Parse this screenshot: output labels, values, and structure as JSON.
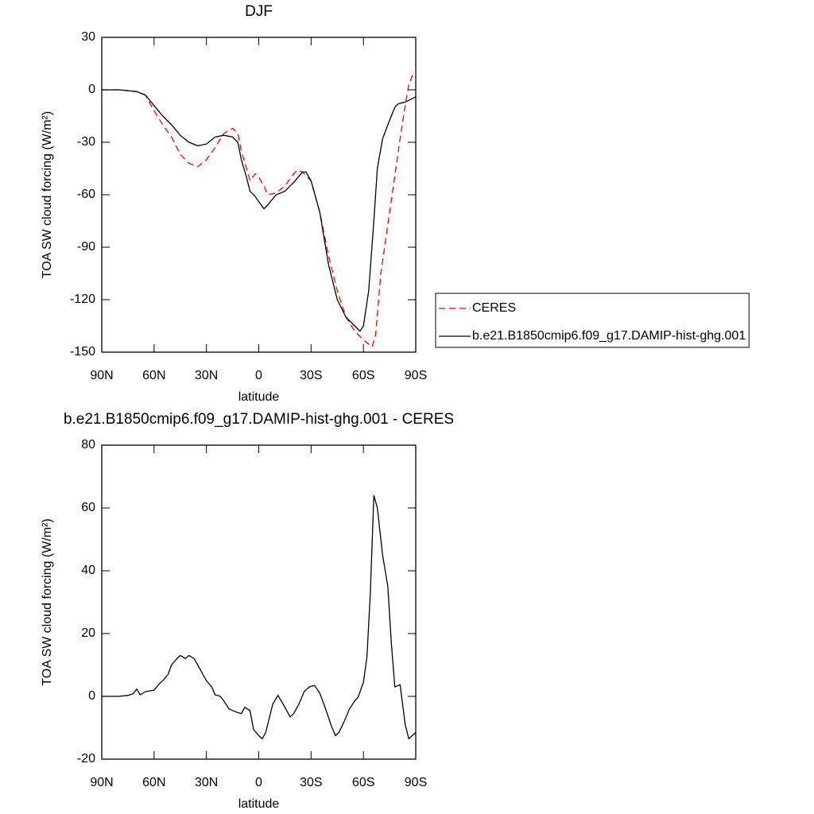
{
  "chart_data": [
    {
      "type": "line",
      "title": "DJF",
      "xlabel": "latitude",
      "ylabel": "TOA SW cloud forcing (W/m²)",
      "xlim": [
        90,
        -90
      ],
      "ylim": [
        -150,
        30
      ],
      "xticks": [
        {
          "value": 90,
          "label": "90N"
        },
        {
          "value": 60,
          "label": "60N"
        },
        {
          "value": 30,
          "label": "30N"
        },
        0,
        {
          "value": -30,
          "label": "30S"
        },
        {
          "value": -60,
          "label": "60S"
        },
        {
          "value": -90,
          "label": "90S"
        }
      ],
      "yticks": [
        -150,
        -120,
        -90,
        -60,
        -30,
        0,
        30
      ],
      "legend": "right",
      "series": [
        {
          "name": "CERES",
          "color": "#ff0000",
          "dash": true,
          "x": [
            90,
            80,
            70,
            65,
            60,
            55,
            50,
            45,
            40,
            35,
            30,
            25,
            20,
            15,
            12,
            10,
            7,
            5,
            2,
            0,
            -3,
            -5,
            -10,
            -15,
            -20,
            -22,
            -25,
            -30,
            -35,
            -40,
            -45,
            -50,
            -55,
            -60,
            -65,
            -67,
            -70,
            -75,
            -80,
            -83,
            -86,
            -88,
            -90
          ],
          "values": [
            0,
            0,
            -1,
            -3,
            -12,
            -20,
            -27,
            -37,
            -42,
            -44,
            -40,
            -33,
            -25,
            -22,
            -25,
            -35,
            -45,
            -52,
            -48,
            -50,
            -55,
            -60,
            -59,
            -55,
            -48,
            -46,
            -47,
            -52,
            -70,
            -95,
            -115,
            -130,
            -138,
            -143,
            -147,
            -140,
            -105,
            -70,
            -35,
            -15,
            3,
            8,
            7
          ]
        },
        {
          "name": "b.e21.B1850cmip6.f09_g17.DAMIP-hist-ghg.001",
          "color": "#000000",
          "dash": false,
          "x": [
            90,
            80,
            70,
            65,
            60,
            55,
            50,
            45,
            40,
            35,
            30,
            25,
            20,
            15,
            12,
            10,
            7,
            5,
            2,
            0,
            -3,
            -5,
            -10,
            -15,
            -20,
            -25,
            -27,
            -30,
            -35,
            -40,
            -45,
            -50,
            -55,
            -58,
            -60,
            -63,
            -66,
            -68,
            -71,
            -74,
            -78,
            -80,
            -84,
            -90
          ],
          "values": [
            0,
            0,
            -1,
            -3,
            -9,
            -15,
            -20,
            -26,
            -30,
            -32,
            -31,
            -27,
            -26,
            -27,
            -30,
            -40,
            -50,
            -58,
            -61,
            -64,
            -68,
            -66,
            -60,
            -58,
            -53,
            -47,
            -47,
            -52,
            -70,
            -100,
            -120,
            -130,
            -135,
            -138,
            -135,
            -115,
            -75,
            -45,
            -28,
            -20,
            -10,
            -8,
            -7,
            -4
          ]
        }
      ]
    },
    {
      "type": "line",
      "title": "b.e21.B1850cmip6.f09_g17.DAMIP-hist-ghg.001 - CERES",
      "xlabel": "latitude",
      "ylabel": "TOA SW cloud forcing (W/m²)",
      "xlim": [
        90,
        -90
      ],
      "ylim": [
        -20,
        80
      ],
      "xticks": [
        {
          "value": 90,
          "label": "90N"
        },
        {
          "value": 60,
          "label": "60N"
        },
        {
          "value": 30,
          "label": "30N"
        },
        0,
        {
          "value": -30,
          "label": "30S"
        },
        {
          "value": -60,
          "label": "60S"
        },
        {
          "value": -90,
          "label": "90S"
        }
      ],
      "yticks": [
        -20,
        0,
        20,
        40,
        60,
        80
      ],
      "series": [
        {
          "color": "#000000",
          "dash": false,
          "x": [
            90,
            80,
            75,
            72,
            70,
            68,
            65,
            60,
            57,
            55,
            52,
            50,
            47,
            45,
            42,
            40,
            37,
            35,
            32,
            30,
            27,
            25,
            22,
            20,
            17,
            15,
            12,
            10,
            8,
            5,
            3,
            0,
            -2,
            -4,
            -6,
            -8,
            -11,
            -13,
            -16,
            -18,
            -20,
            -23,
            -26,
            -29,
            -32,
            -35,
            -38,
            -42,
            -44,
            -46,
            -49,
            -52,
            -55,
            -57,
            -60,
            -62,
            -64,
            -66,
            -68,
            -71,
            -74,
            -76,
            -78,
            -81,
            -84,
            -86,
            -90
          ],
          "values": [
            0,
            0,
            0.3,
            0.8,
            2.3,
            0.5,
            1.5,
            2,
            4,
            5,
            7,
            10,
            12,
            13,
            12,
            13,
            12,
            10,
            7,
            5,
            3,
            0.5,
            0,
            -1.5,
            -4,
            -4.5,
            -5.2,
            -5.5,
            -3.5,
            -4.5,
            -10.5,
            -12.5,
            -13.5,
            -11.5,
            -7,
            -2.5,
            0.3,
            -1.5,
            -4.5,
            -6.5,
            -5.5,
            -2.5,
            1.5,
            3,
            3.5,
            1,
            -3.5,
            -10,
            -12.5,
            -11.5,
            -8,
            -4,
            -1.5,
            -0.2,
            4.5,
            12.5,
            33,
            64,
            60,
            45,
            35,
            17,
            3,
            3.7,
            -9,
            -13.5,
            -11.5
          ]
        }
      ]
    }
  ]
}
